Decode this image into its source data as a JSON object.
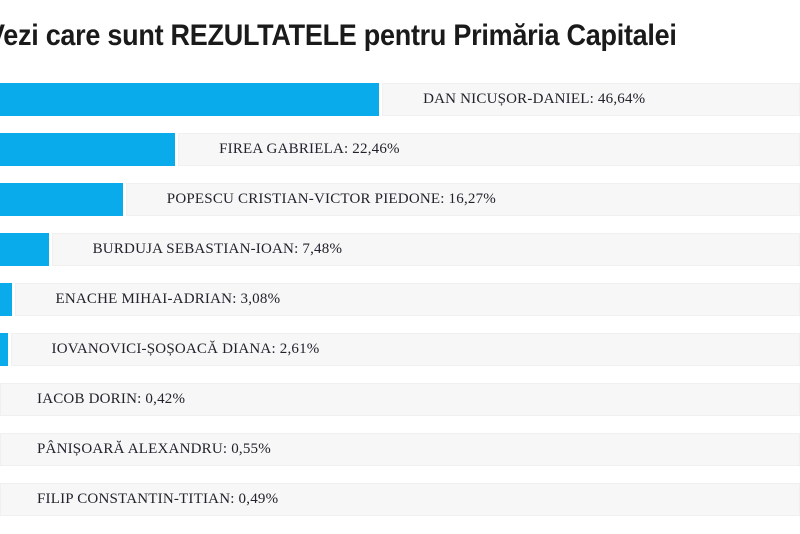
{
  "chart_data": {
    "type": "bar",
    "orientation": "horizontal",
    "title": "Vezi care sunt REZULTATELE pentru Primăria Capitalei",
    "categories": [
      "DAN NICUȘOR-DANIEL",
      "FIREA GABRIELA",
      "POPESCU CRISTIAN-VICTOR PIEDONE",
      "BURDUJA SEBASTIAN-IOAN",
      "ENACHE MIHAI-ADRIAN",
      "IOVANOVICI-ȘOȘOACĂ DIANA",
      "IACOB DORIN",
      "PÂNIȘOARĂ ALEXANDRU",
      "FILIP CONSTANTIN-TITIAN"
    ],
    "values": [
      46.64,
      22.46,
      16.27,
      7.48,
      3.08,
      2.61,
      0.42,
      0.55,
      0.49
    ],
    "value_labels": [
      "46,64%",
      "22,46%",
      "16,27%",
      "7,48%",
      "3,08%",
      "2,61%",
      "0,42%",
      "0,55%",
      "0,49%"
    ],
    "label_separator": ": ",
    "xlim": [
      0,
      100
    ],
    "bar_color": "#09abeb",
    "row_background": "#f7f7f7",
    "legend": "none",
    "grid": "off",
    "left_edge_cropped": true
  }
}
